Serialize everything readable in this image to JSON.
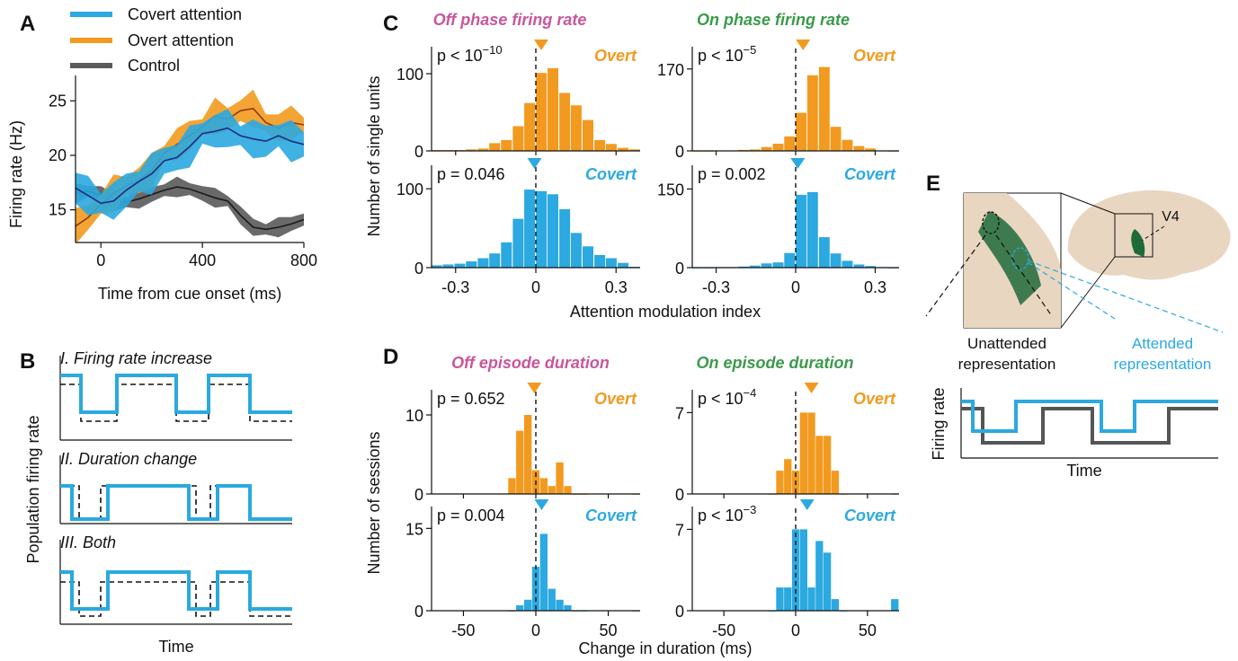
{
  "colors": {
    "overt": "#F29A1F",
    "covert": "#2BA9E0",
    "control": "#5A5A5A",
    "off_title": "#C8569B",
    "on_title": "#3B9A4A",
    "brain": "#E9D6C1",
    "cortex": "#1E6B3A"
  },
  "panel_letters": [
    "A",
    "B",
    "C",
    "D",
    "E"
  ],
  "panelA": {
    "legend": [
      "Covert attention",
      "Overt attention",
      "Control"
    ],
    "xlabel": "Time from cue onset (ms)",
    "ylabel": "Firing rate (Hz)",
    "xticks": [
      "0",
      "400",
      "800"
    ],
    "yticks": [
      "15",
      "20",
      "25"
    ]
  },
  "panelB": {
    "titles": [
      "I. Firing rate increase",
      "II. Duration change",
      "III. Both"
    ],
    "ylabel": "Population firing rate",
    "xlabel": "Time"
  },
  "panelC": {
    "titles": [
      "Off phase firing rate",
      "On phase firing rate"
    ],
    "ylabel": "Number of single units",
    "xlabel": "Attention modulation index",
    "xticks": [
      "-0.3",
      "0",
      "0.3"
    ],
    "cond_labels": [
      "Overt",
      "Covert"
    ],
    "pvals": [
      {
        "base": "p < 10",
        "sup": "−10"
      },
      {
        "base": "p < 10",
        "sup": "−5"
      },
      {
        "base": "p = 0.046",
        "sup": ""
      },
      {
        "base": "p = 0.002",
        "sup": ""
      }
    ],
    "yticks": [
      [
        "0",
        "100"
      ],
      [
        "0",
        "170"
      ],
      [
        "0",
        "100"
      ],
      [
        "0",
        "150"
      ]
    ]
  },
  "panelD": {
    "titles": [
      "Off episode duration",
      "On episode duration"
    ],
    "ylabel": "Number of sessions",
    "xlabel": "Change in duration (ms)",
    "xticks": [
      "-50",
      "0",
      "50"
    ],
    "cond_labels": [
      "Overt",
      "Covert"
    ],
    "pvals": [
      {
        "base": "p = 0.652",
        "sup": ""
      },
      {
        "base": "p < 10",
        "sup": "−4"
      },
      {
        "base": "p = 0.004",
        "sup": ""
      },
      {
        "base": "p < 10",
        "sup": "−3"
      }
    ],
    "yticks": [
      [
        "0",
        "10"
      ],
      [
        "0",
        "7"
      ],
      [
        "0",
        "15"
      ],
      [
        "0",
        "7"
      ]
    ]
  },
  "panelE": {
    "area_label": "V4",
    "unattended": [
      "Unattended",
      "representation"
    ],
    "attended": [
      "Attended",
      "representation"
    ],
    "ylabel": "Firing rate",
    "xlabel": "Time"
  },
  "chart_data": [
    {
      "type": "line",
      "panel": "A",
      "xlabel": "Time from cue onset (ms)",
      "ylabel": "Firing rate (Hz)",
      "xlim": [
        -100,
        800
      ],
      "ylim": [
        12,
        27
      ],
      "x": [
        -100,
        -50,
        0,
        50,
        100,
        150,
        200,
        250,
        300,
        350,
        400,
        450,
        500,
        550,
        600,
        650,
        700,
        750,
        800
      ],
      "series": [
        {
          "name": "Covert attention",
          "values": [
            17,
            16.3,
            15.6,
            15.8,
            16.8,
            17.6,
            18.3,
            19.5,
            19.8,
            20.8,
            22,
            22.2,
            22.5,
            21.8,
            21.5,
            21.3,
            21.8,
            21.3,
            21
          ],
          "err": 1.4
        },
        {
          "name": "Overt attention",
          "values": [
            13.5,
            14.3,
            15.5,
            16.5,
            17.2,
            17.7,
            18.6,
            20.2,
            21,
            21.8,
            22.6,
            23.6,
            23.3,
            24.1,
            24.3,
            23,
            22.5,
            23,
            22.8
          ],
          "err": 1.2
        },
        {
          "name": "Control",
          "values": [
            16.5,
            16.7,
            16.4,
            15.7,
            15.7,
            16,
            16.4,
            16.8,
            17.1,
            16.9,
            16.5,
            16.1,
            15.8,
            14.5,
            13.4,
            13.2,
            13.4,
            13.7,
            14.1
          ],
          "err": 0.7
        }
      ]
    },
    {
      "type": "bar",
      "panel": "C",
      "xlabel": "Attention modulation index",
      "ylabel": "Number of single units",
      "bin_centers": [
        -0.371,
        -0.328,
        -0.284,
        -0.241,
        -0.197,
        -0.154,
        -0.11,
        -0.066,
        -0.023,
        0.021,
        0.064,
        0.108,
        0.151,
        0.195,
        0.239,
        0.282,
        0.326,
        0.369
      ],
      "xlim": [
        -0.39,
        0.39
      ],
      "series": [
        {
          "name": "Off phase firing rate, Overt",
          "values": [
            1,
            1,
            1,
            2,
            3,
            10,
            14,
            32,
            62,
            101,
            107,
            75,
            59,
            40,
            14,
            9,
            4,
            2
          ],
          "ylim": [
            0,
            128
          ],
          "median": 0.02,
          "p": "p < 10^-10"
        },
        {
          "name": "On phase firing rate, Overt",
          "values": [
            0,
            0,
            1,
            1,
            2,
            3,
            8,
            15,
            30,
            79,
            157,
            174,
            50,
            23,
            10,
            5,
            1,
            0
          ],
          "ylim": [
            0,
            205
          ],
          "median": 0.028,
          "p": "p < 10^-5"
        },
        {
          "name": "Off phase firing rate, Covert",
          "values": [
            3,
            4,
            5,
            8,
            12,
            18,
            32,
            62,
            99,
            97,
            93,
            74,
            44,
            27,
            16,
            12,
            6,
            1
          ],
          "ylim": [
            0,
            123
          ],
          "median": -0.005,
          "p": "p = 0.046"
        },
        {
          "name": "On phase firing rate, Covert",
          "values": [
            0,
            0,
            1,
            1,
            2,
            4,
            8,
            10,
            28,
            139,
            144,
            58,
            27,
            13,
            6,
            3,
            1,
            0
          ],
          "ylim": [
            0,
            185
          ],
          "median": 0.008,
          "p": "p = 0.002"
        }
      ]
    },
    {
      "type": "bar",
      "panel": "D",
      "xlabel": "Change in duration (ms)",
      "ylabel": "Number of sessions",
      "bin_centers": [
        -16.5,
        -11,
        -5.5,
        0,
        5.5,
        11,
        16.5,
        22,
        27.5,
        33,
        69
      ],
      "xlim": [
        -72,
        72
      ],
      "series": [
        {
          "name": "Off episode duration, Overt",
          "values": [
            2,
            8,
            10,
            3,
            2,
            1,
            4,
            1,
            0,
            0,
            0
          ],
          "ylim": [
            0,
            12.5
          ],
          "median": -1,
          "p": "p = 0.652"
        },
        {
          "name": "On episode duration, Overt",
          "values": [
            0,
            2,
            3,
            2,
            7,
            7,
            5,
            5,
            2,
            0,
            0
          ],
          "ylim": [
            0,
            8.5
          ],
          "median": 11,
          "p": "p < 10^-4"
        },
        {
          "name": "Off episode duration, Covert",
          "values": [
            0,
            1,
            2,
            8,
            14,
            4,
            2,
            1,
            0,
            0,
            0
          ],
          "ylim": [
            0,
            18
          ],
          "median": 4,
          "p": "p = 0.004"
        },
        {
          "name": "On episode duration, Covert",
          "values": [
            0,
            2,
            2,
            7,
            7,
            2,
            6,
            5,
            1,
            0,
            1
          ],
          "ylim": [
            0,
            8.5
          ],
          "median": 8,
          "p": "p < 10^-3"
        }
      ]
    }
  ]
}
